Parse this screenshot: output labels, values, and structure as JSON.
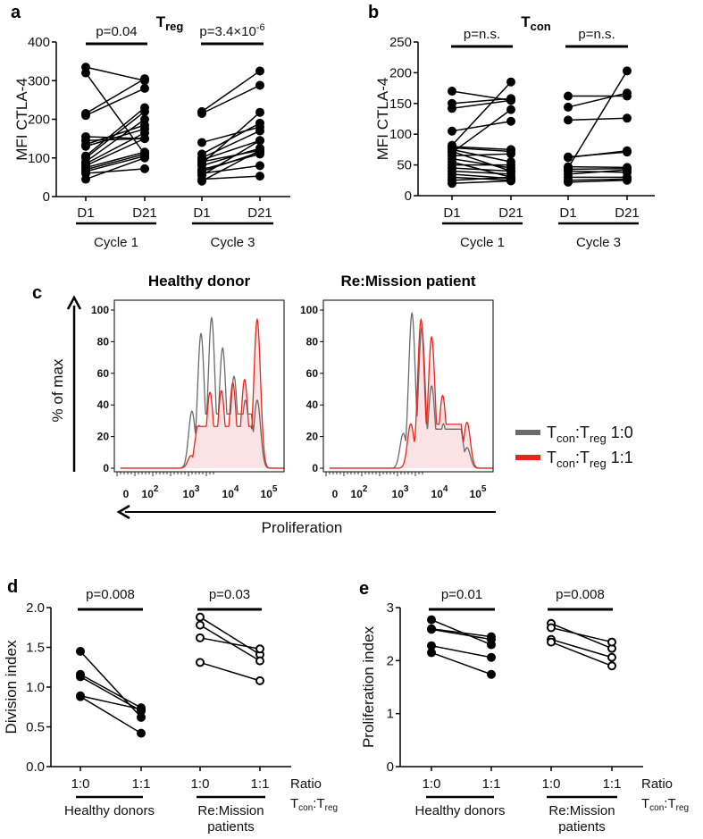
{
  "colors": {
    "axis": "#000000",
    "grey": "#6b6b6b",
    "red": "#e8261c",
    "red_fill": "#fbe3e5"
  },
  "chart_data": [
    {
      "id": "a",
      "type": "scatter",
      "letter": "a",
      "title": {
        "main": "T",
        "sub": "reg"
      },
      "ylabel": "MFI CTLA-4",
      "ylim": [
        0,
        400
      ],
      "yticks": [
        "0",
        "100",
        "200",
        "300",
        "400"
      ],
      "categories": [
        "D1",
        "D21",
        "D1",
        "D21"
      ],
      "groups": [
        "Cycle 1",
        "Cycle 3"
      ],
      "p_values": [
        {
          "text": "p=0.04",
          "sup": ""
        },
        {
          "text": "p=3.4×10",
          "sup": "-6"
        }
      ],
      "marker": "filled",
      "series": [
        {
          "group": "Cycle 1",
          "pairs": [
            [
              335,
              300
            ],
            [
              320,
              110
            ],
            [
              215,
              305
            ],
            [
              210,
              280
            ],
            [
              155,
              150
            ],
            [
              145,
              150
            ],
            [
              135,
              185
            ],
            [
              130,
              175
            ],
            [
              105,
              230
            ],
            [
              100,
              220
            ],
            [
              90,
              200
            ],
            [
              85,
              165
            ],
            [
              80,
              150
            ],
            [
              75,
              115
            ],
            [
              70,
              110
            ],
            [
              65,
              105
            ],
            [
              60,
              72
            ],
            [
              45,
              100
            ]
          ]
        },
        {
          "group": "Cycle 3",
          "pairs": [
            [
              220,
              325
            ],
            [
              215,
              288
            ],
            [
              140,
              180
            ],
            [
              110,
              190
            ],
            [
              100,
              170
            ],
            [
              95,
              145
            ],
            [
              90,
              120
            ],
            [
              85,
              218
            ],
            [
              80,
              125
            ],
            [
              70,
              110
            ],
            [
              65,
              115
            ],
            [
              60,
              80
            ],
            [
              55,
              145
            ],
            [
              45,
              53
            ],
            [
              40,
              120
            ]
          ]
        }
      ]
    },
    {
      "id": "b",
      "type": "scatter",
      "letter": "b",
      "title": {
        "main": "T",
        "sub": "con"
      },
      "ylabel": "MFI CTLA-4",
      "ylim": [
        0,
        250
      ],
      "yticks": [
        "0",
        "50",
        "100",
        "150",
        "200",
        "250"
      ],
      "categories": [
        "D1",
        "D21",
        "D1",
        "D21"
      ],
      "groups": [
        "Cycle 1",
        "Cycle 3"
      ],
      "p_values": [
        {
          "text": "p=n.s.",
          "sup": ""
        },
        {
          "text": "p=n.s.",
          "sup": ""
        }
      ],
      "marker": "filled",
      "series": [
        {
          "group": "Cycle 1",
          "pairs": [
            [
              170,
              155
            ],
            [
              150,
              158
            ],
            [
              142,
              155
            ],
            [
              105,
              121
            ],
            [
              80,
              75
            ],
            [
              78,
              72
            ],
            [
              75,
              55
            ],
            [
              72,
              40
            ],
            [
              65,
              68
            ],
            [
              60,
              45
            ],
            [
              55,
              30
            ],
            [
              50,
              50
            ],
            [
              45,
              40
            ],
            [
              40,
              35
            ],
            [
              35,
              28
            ],
            [
              30,
              25
            ],
            [
              25,
              30
            ],
            [
              20,
              24
            ],
            [
              82,
              185
            ],
            [
              70,
              140
            ]
          ]
        },
        {
          "group": "Cycle 3",
          "pairs": [
            [
              162,
              162
            ],
            [
              144,
              167
            ],
            [
              123,
              126
            ],
            [
              63,
              71
            ],
            [
              62,
              73
            ],
            [
              47,
              46
            ],
            [
              43,
              44
            ],
            [
              40,
              38
            ],
            [
              35,
              42
            ],
            [
              30,
              30
            ],
            [
              25,
              27
            ],
            [
              22,
              25
            ],
            [
              45,
              203
            ]
          ]
        }
      ]
    },
    {
      "id": "c",
      "type": "area",
      "letter": "c",
      "panels": [
        {
          "title": "Healthy donor",
          "series": [
            {
              "name": "1:0",
              "peaks": [
                [
                  3.02,
                  36
                ],
                [
                  3.25,
                  85
                ],
                [
                  3.52,
                  95
                ],
                [
                  3.8,
                  76
                ],
                [
                  4.09,
                  58
                ],
                [
                  4.38,
                  43
                ],
                [
                  4.68,
                  43
                ]
              ]
            },
            {
              "name": "1:1",
              "peaks": [
                [
                  3.0,
                  8
                ],
                [
                  3.2,
                  27
                ],
                [
                  3.48,
                  48
                ],
                [
                  3.77,
                  49
                ],
                [
                  4.06,
                  54
                ],
                [
                  4.36,
                  56
                ],
                [
                  4.68,
                  94
                ]
              ]
            }
          ]
        },
        {
          "title": "Re:Mission patient",
          "series": [
            {
              "name": "1:0",
              "peaks": [
                [
                  3.08,
                  22
                ],
                [
                  3.3,
                  98
                ],
                [
                  3.55,
                  89
                ],
                [
                  3.8,
                  52
                ],
                [
                  4.1,
                  28
                ],
                [
                  4.43,
                  12
                ],
                [
                  4.7,
                  13
                ]
              ]
            },
            {
              "name": "1:1",
              "peaks": [
                [
                  3.27,
                  28
                ],
                [
                  3.53,
                  94
                ],
                [
                  3.8,
                  83
                ],
                [
                  4.08,
                  46
                ],
                [
                  4.47,
                  23
                ],
                [
                  4.7,
                  29
                ]
              ]
            }
          ]
        }
      ],
      "ylabel": "% of max",
      "ylim": [
        0,
        100
      ],
      "yticks": [
        "0",
        "20",
        "40",
        "60",
        "80",
        "100"
      ],
      "xticks": [
        {
          "base": "0",
          "exp": ""
        },
        {
          "base": "10",
          "exp": "2"
        },
        {
          "base": "10",
          "exp": "3"
        },
        {
          "base": "10",
          "exp": "4"
        },
        {
          "base": "10",
          "exp": "5"
        }
      ],
      "xlabel": "Proliferation",
      "legend": [
        {
          "a": "T",
          "as": "con",
          "b": ":T",
          "bs": "reg",
          "ratio": " 1:0",
          "color": "grey"
        },
        {
          "a": "T",
          "as": "con",
          "b": ":T",
          "bs": "reg",
          "ratio": " 1:1",
          "color": "red"
        }
      ]
    },
    {
      "id": "d",
      "type": "scatter",
      "letter": "d",
      "ylabel": "Division index",
      "ylim": [
        0,
        2.0
      ],
      "yticks": [
        "0.0",
        "0.5",
        "1.0",
        "1.5",
        "2.0"
      ],
      "categories": [
        "1:0",
        "1:1",
        "1:0",
        "1:1"
      ],
      "groups": [
        "Healthy donors",
        "Re:Mission\npatients"
      ],
      "ratio_label": {
        "line1": "Ratio",
        "a": "T",
        "as": "con",
        "b": ":T",
        "bs": "reg"
      },
      "p_values": [
        {
          "text": "p=0.008",
          "sup": ""
        },
        {
          "text": "p=0.03",
          "sup": ""
        }
      ],
      "series": [
        {
          "group": "Healthy donors",
          "marker": "filled",
          "pairs": [
            [
              1.45,
              0.62
            ],
            [
              1.16,
              0.74
            ],
            [
              1.13,
              0.7
            ],
            [
              0.89,
              0.72
            ],
            [
              0.88,
              0.42
            ]
          ]
        },
        {
          "group": "Re:Mission patients",
          "marker": "open",
          "pairs": [
            [
              1.88,
              1.41
            ],
            [
              1.78,
              1.33
            ],
            [
              1.62,
              1.48
            ],
            [
              1.31,
              1.08
            ]
          ]
        }
      ]
    },
    {
      "id": "e",
      "type": "scatter",
      "letter": "e",
      "ylabel": "Proliferation index",
      "ylim": [
        0,
        3
      ],
      "yticks": [
        "0",
        "1",
        "2",
        "3"
      ],
      "categories": [
        "1:0",
        "1:1",
        "1:0",
        "1:1"
      ],
      "groups": [
        "Healthy donors",
        "Re:Mission\npatients"
      ],
      "ratio_label": {
        "line1": "Ratio",
        "a": "T",
        "as": "con",
        "b": ":T",
        "bs": "reg"
      },
      "p_values": [
        {
          "text": "p=0.01",
          "sup": ""
        },
        {
          "text": "p=0.008",
          "sup": ""
        }
      ],
      "series": [
        {
          "group": "Healthy donors",
          "marker": "filled",
          "pairs": [
            [
              2.77,
              2.3
            ],
            [
              2.6,
              2.45
            ],
            [
              2.59,
              2.4
            ],
            [
              2.28,
              2.06
            ],
            [
              2.15,
              1.74
            ]
          ]
        },
        {
          "group": "Re:Mission patients",
          "marker": "open",
          "pairs": [
            [
              2.7,
              2.23
            ],
            [
              2.62,
              2.35
            ],
            [
              2.4,
              2.06
            ],
            [
              2.35,
              1.9
            ]
          ]
        }
      ]
    }
  ]
}
